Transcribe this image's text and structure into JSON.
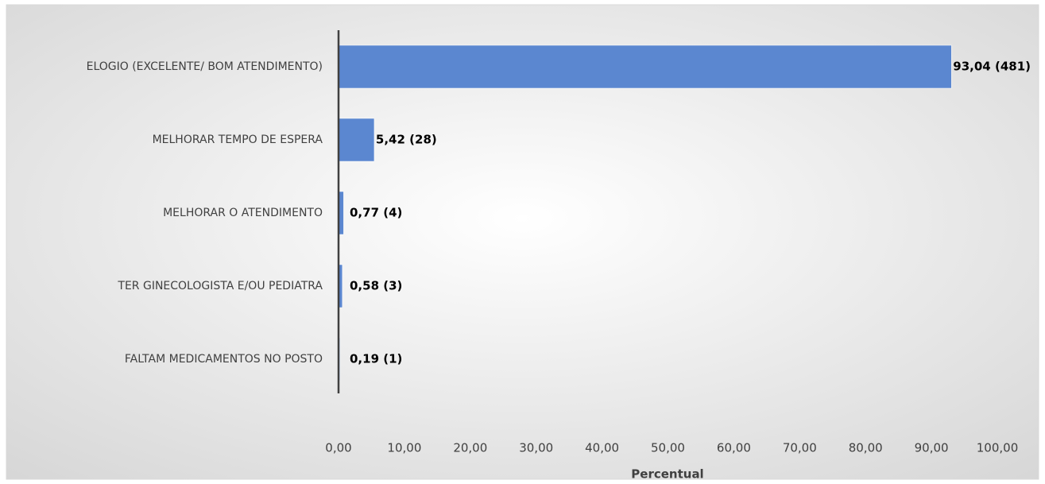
{
  "chart_data": {
    "type": "bar",
    "orientation": "horizontal",
    "categories": [
      "ELOGIO (EXCELENTE/ BOM ATENDIMENTO)",
      "MELHORAR TEMPO DE ESPERA",
      "MELHORAR O ATENDIMENTO",
      "TER GINECOLOGISTA E/OU PEDIATRA",
      "FALTAM MEDICAMENTOS NO POSTO"
    ],
    "values": [
      93.04,
      5.42,
      0.77,
      0.58,
      0.19
    ],
    "value_labels": [
      "93,04 (481)",
      "5,42 (28)",
      "0,77 (4)",
      "0,58 (3)",
      "0,19 (1)"
    ],
    "color": "#5b87d0",
    "xlabel": "Percentual",
    "xlim": [
      0,
      100
    ],
    "xticks": [
      {
        "value": 0,
        "label": "0,00"
      },
      {
        "value": 10,
        "label": "10,00"
      },
      {
        "value": 20,
        "label": "20,00"
      },
      {
        "value": 30,
        "label": "30,00"
      },
      {
        "value": 40,
        "label": "40,00"
      },
      {
        "value": 50,
        "label": "50,00"
      },
      {
        "value": 60,
        "label": "60,00"
      },
      {
        "value": 70,
        "label": "70,00"
      },
      {
        "value": 80,
        "label": "80,00"
      },
      {
        "value": 90,
        "label": "90,00"
      },
      {
        "value": 100,
        "label": "100,00"
      }
    ],
    "grid": false
  }
}
